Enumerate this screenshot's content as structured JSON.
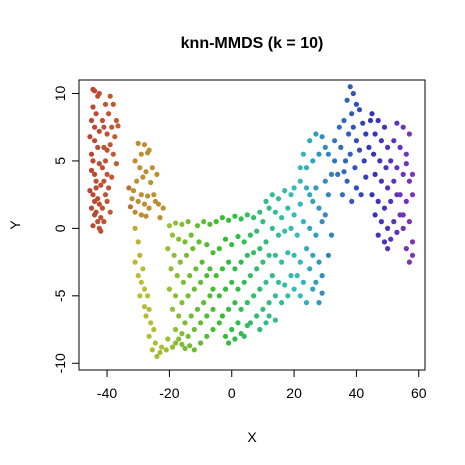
{
  "chart_data": {
    "type": "scatter",
    "title": "knn-MMDS (k = 10)",
    "xlabel": "X",
    "ylabel": "Y",
    "xlim": [
      -49,
      62
    ],
    "ylim": [
      -10.5,
      11
    ],
    "xticks": [
      -40,
      -20,
      0,
      20,
      40,
      60
    ],
    "yticks": [
      -10,
      -5,
      0,
      5,
      10
    ],
    "grid": false,
    "legend": "none",
    "point_color_scale": "rainbow hue by position along manifold (red to violet)",
    "points": [
      [
        -44,
        10.2
      ],
      [
        -43,
        9.8
      ],
      [
        -44.5,
        9
      ],
      [
        -43.5,
        8.5
      ],
      [
        -45,
        8
      ],
      [
        -44,
        7.5
      ],
      [
        -42.5,
        7.2
      ],
      [
        -45.5,
        6.8
      ],
      [
        -44,
        6.5
      ],
      [
        -43,
        6
      ],
      [
        -45,
        5.5
      ],
      [
        -44.5,
        5
      ],
      [
        -42.5,
        4.8
      ],
      [
        -45,
        4.3
      ],
      [
        -44,
        4
      ],
      [
        -43.5,
        3.5
      ],
      [
        -42,
        3.2
      ],
      [
        -45.5,
        2.8
      ],
      [
        -44.5,
        2.5
      ],
      [
        -43,
        2.2
      ],
      [
        -44,
        2
      ],
      [
        -42.5,
        1.8
      ],
      [
        -45,
        1.5
      ],
      [
        -43.5,
        1.2
      ],
      [
        -44,
        1
      ],
      [
        -42,
        0.8
      ],
      [
        -43,
        0.5
      ],
      [
        -44.5,
        0.2
      ],
      [
        -42.5,
        0
      ],
      [
        -43.5,
        3
      ],
      [
        -41.5,
        8
      ],
      [
        -41,
        7.5
      ],
      [
        -40,
        7
      ],
      [
        -41,
        6
      ],
      [
        -40.5,
        5
      ],
      [
        -41.5,
        4.5
      ],
      [
        -40,
        4
      ],
      [
        -41,
        3.5
      ],
      [
        -40.5,
        2.5
      ],
      [
        -41.5,
        1.5
      ],
      [
        -39,
        9.8
      ],
      [
        -38,
        9.2
      ],
      [
        -39.5,
        8.5
      ],
      [
        -37,
        8
      ],
      [
        -38.5,
        7.5
      ],
      [
        -36.5,
        7.6
      ],
      [
        -37.5,
        6.8
      ],
      [
        -39,
        6.2
      ],
      [
        -38,
        5.5
      ],
      [
        -40,
        5.8
      ],
      [
        -37,
        4.8
      ],
      [
        -38.5,
        3.8
      ],
      [
        -39.5,
        3
      ],
      [
        -40,
        2
      ],
      [
        -39,
        1.2
      ],
      [
        -41,
        0.5
      ],
      [
        -42,
        -0.2
      ],
      [
        -40.5,
        9.2
      ],
      [
        -42.5,
        10
      ],
      [
        -44.5,
        10.3
      ],
      [
        -30,
        6.3
      ],
      [
        -28,
        6.2
      ],
      [
        -29,
        5.5
      ],
      [
        -27,
        5.6
      ],
      [
        -31,
        5
      ],
      [
        -29.5,
        4.5
      ],
      [
        -27.5,
        4.2
      ],
      [
        -28.5,
        3.8
      ],
      [
        -30.5,
        3.5
      ],
      [
        -26,
        3.4
      ],
      [
        -33,
        3
      ],
      [
        -31.5,
        2.8
      ],
      [
        -29,
        2.5
      ],
      [
        -27,
        2.4
      ],
      [
        -25,
        2.5
      ],
      [
        -32,
        2.2
      ],
      [
        -30,
        2
      ],
      [
        -28,
        1.8
      ],
      [
        -26.5,
        1.5
      ],
      [
        -24.5,
        2
      ],
      [
        -23.5,
        1.8
      ],
      [
        -22,
        1.5
      ],
      [
        -23,
        0.8
      ],
      [
        -31,
        1.2
      ],
      [
        -29,
        1
      ],
      [
        -32.5,
        1.6
      ],
      [
        -27.5,
        0.9
      ],
      [
        -25.5,
        4.5
      ],
      [
        -24,
        4
      ],
      [
        -26.5,
        5.8
      ],
      [
        -31,
        0
      ],
      [
        -30,
        -1
      ],
      [
        -29.5,
        -2
      ],
      [
        -31,
        -2.5
      ],
      [
        -28.5,
        -3
      ],
      [
        -30,
        -3.5
      ],
      [
        -29,
        -4
      ],
      [
        -28,
        -4.5
      ],
      [
        -27,
        -5
      ],
      [
        -29.5,
        -5
      ],
      [
        -28,
        -5.8
      ],
      [
        -26.5,
        -6
      ],
      [
        -27.5,
        -6.5
      ],
      [
        -26,
        -7
      ],
      [
        -25,
        -7.5
      ],
      [
        -26.5,
        -8
      ],
      [
        -24.5,
        -8.5
      ],
      [
        -25.5,
        -9
      ],
      [
        -24,
        -9.5
      ],
      [
        -23,
        -9.2
      ],
      [
        -22.5,
        -8.8
      ],
      [
        -21,
        -9
      ],
      [
        -19,
        -8.8
      ],
      [
        -20.5,
        -8.2
      ],
      [
        -18,
        -8.5
      ],
      [
        -17,
        -8.2
      ],
      [
        -16,
        -8.6
      ],
      [
        -15,
        -8.9
      ],
      [
        -13.5,
        -8.7
      ],
      [
        -12,
        -9
      ],
      [
        -20,
        0.2
      ],
      [
        -18,
        0.4
      ],
      [
        -16,
        0.3
      ],
      [
        -14,
        0.5
      ],
      [
        -19,
        -0.5
      ],
      [
        -17,
        -0.8
      ],
      [
        -15,
        -1
      ],
      [
        -13,
        -0.5
      ],
      [
        -11,
        0.2
      ],
      [
        -20.5,
        -1.5
      ],
      [
        -18.5,
        -2
      ],
      [
        -16.5,
        -2.5
      ],
      [
        -14.5,
        -2
      ],
      [
        -12.5,
        -1.5
      ],
      [
        -10.5,
        -1
      ],
      [
        -19.5,
        -3
      ],
      [
        -17.5,
        -3.5
      ],
      [
        -15.5,
        -4
      ],
      [
        -13.5,
        -3.5
      ],
      [
        -11.5,
        -3
      ],
      [
        -9.5,
        -2.5
      ],
      [
        -20,
        -4.5
      ],
      [
        -18,
        -5
      ],
      [
        -16,
        -5.5
      ],
      [
        -14,
        -5
      ],
      [
        -12,
        -4.5
      ],
      [
        -10,
        -4
      ],
      [
        -8,
        -3.5
      ],
      [
        -19,
        -6
      ],
      [
        -17,
        -6.5
      ],
      [
        -15,
        -7
      ],
      [
        -13,
        -6.5
      ],
      [
        -11,
        -6
      ],
      [
        -9,
        -5.5
      ],
      [
        -7,
        -5
      ],
      [
        -18,
        -7.5
      ],
      [
        -16,
        -7.8
      ],
      [
        -14,
        -8
      ],
      [
        -12,
        -7.5
      ],
      [
        -10,
        -7
      ],
      [
        -8,
        -6.5
      ],
      [
        -6,
        -6
      ],
      [
        -10,
        -8.5
      ],
      [
        -8,
        -8
      ],
      [
        -6,
        -7.5
      ],
      [
        -4,
        -7
      ],
      [
        -9,
        0.5
      ],
      [
        -7,
        0.3
      ],
      [
        -5,
        0.5
      ],
      [
        -8,
        -1.2
      ],
      [
        -6,
        -1.8
      ],
      [
        -4,
        -1.5
      ],
      [
        -7,
        -3
      ],
      [
        -5,
        -3.5
      ],
      [
        -3,
        -3
      ],
      [
        -6,
        -4.5
      ],
      [
        -4,
        -5
      ],
      [
        -2,
        -4.5
      ],
      [
        -3,
        -6.5
      ],
      [
        -1,
        -6
      ],
      [
        -2,
        -8
      ],
      [
        0,
        -7.5
      ],
      [
        2,
        -7
      ],
      [
        -1,
        -8.5
      ],
      [
        1,
        -8.2
      ],
      [
        3,
        -7.8
      ],
      [
        5,
        -7.2
      ],
      [
        4,
        -8
      ],
      [
        -3,
        0.8
      ],
      [
        -1,
        0.6
      ],
      [
        1,
        0.9
      ],
      [
        3,
        0.7
      ],
      [
        5,
        1
      ],
      [
        7,
        0.8
      ],
      [
        9,
        1.2
      ],
      [
        -2,
        -0.8
      ],
      [
        0,
        -1.2
      ],
      [
        2,
        -0.6
      ],
      [
        4,
        -1
      ],
      [
        6,
        -0.5
      ],
      [
        8,
        -0.2
      ],
      [
        10,
        0.5
      ],
      [
        -1,
        -2.5
      ],
      [
        1,
        -3
      ],
      [
        3,
        -2.5
      ],
      [
        5,
        -2
      ],
      [
        7,
        -1.8
      ],
      [
        9,
        -1.5
      ],
      [
        11,
        -1
      ],
      [
        0,
        -4
      ],
      [
        2,
        -4.5
      ],
      [
        4,
        -4
      ],
      [
        6,
        -3.5
      ],
      [
        8,
        -3
      ],
      [
        10,
        -2.5
      ],
      [
        12,
        -2
      ],
      [
        1,
        -5.5
      ],
      [
        3,
        -6
      ],
      [
        5,
        -5.5
      ],
      [
        7,
        -5
      ],
      [
        9,
        -4.5
      ],
      [
        11,
        -4
      ],
      [
        13,
        -3.5
      ],
      [
        6,
        -7
      ],
      [
        8,
        -6.5
      ],
      [
        10,
        -6
      ],
      [
        12,
        -5.5
      ],
      [
        14,
        -5
      ],
      [
        9,
        -7.5
      ],
      [
        11,
        -7
      ],
      [
        12,
        1.5
      ],
      [
        14,
        1.2
      ],
      [
        16,
        0.8
      ],
      [
        13,
        0
      ],
      [
        15,
        -0.5
      ],
      [
        17,
        -0.2
      ],
      [
        14,
        -2
      ],
      [
        16,
        -2.5
      ],
      [
        18,
        -1.8
      ],
      [
        15,
        -4
      ],
      [
        17,
        -4.2
      ],
      [
        19,
        -3.5
      ],
      [
        16,
        -5.5
      ],
      [
        18,
        -5
      ],
      [
        20,
        -4.5
      ],
      [
        11,
        2
      ],
      [
        13,
        2.5
      ],
      [
        15,
        2.2
      ],
      [
        12,
        -6.5
      ],
      [
        14,
        -6.8
      ],
      [
        18,
        1.5
      ],
      [
        20,
        1
      ],
      [
        22,
        1.8
      ],
      [
        19,
        0
      ],
      [
        21,
        -0.5
      ],
      [
        23,
        0.5
      ],
      [
        20,
        -2
      ],
      [
        22,
        -2.5
      ],
      [
        24,
        -1.5
      ],
      [
        21,
        -3.5
      ],
      [
        23,
        -4
      ],
      [
        25,
        -3
      ],
      [
        22,
        -5
      ],
      [
        24,
        -5.5
      ],
      [
        26,
        -4.5
      ],
      [
        20,
        3
      ],
      [
        22,
        3.5
      ],
      [
        24,
        3
      ],
      [
        19,
        2.5
      ],
      [
        17,
        2.8
      ],
      [
        26,
        2
      ],
      [
        28,
        1.5
      ],
      [
        25,
        0
      ],
      [
        27,
        -0.5
      ],
      [
        29,
        0.5
      ],
      [
        26,
        -2
      ],
      [
        28,
        -2.5
      ],
      [
        27,
        -4
      ],
      [
        29,
        -3.5
      ],
      [
        28,
        -5.5
      ],
      [
        24,
        4.5
      ],
      [
        26,
        5
      ],
      [
        28,
        5.5
      ],
      [
        30,
        6
      ],
      [
        25,
        6.5
      ],
      [
        27,
        7
      ],
      [
        29,
        6.8
      ],
      [
        31,
        5.5
      ],
      [
        23,
        5.5
      ],
      [
        22,
        4.5
      ],
      [
        30,
        3.5
      ],
      [
        32,
        4
      ],
      [
        31,
        2.5
      ],
      [
        30,
        1
      ],
      [
        32,
        -0.5
      ],
      [
        31,
        -2
      ],
      [
        29,
        -4.8
      ],
      [
        33,
        5
      ],
      [
        27,
        3
      ],
      [
        25,
        2.5
      ],
      [
        38,
        10.5
      ],
      [
        39,
        10
      ],
      [
        37,
        9.5
      ],
      [
        40,
        9.2
      ],
      [
        38.5,
        8.5
      ],
      [
        41,
        8.8
      ],
      [
        36,
        8
      ],
      [
        39,
        7.5
      ],
      [
        42,
        7.8
      ],
      [
        37.5,
        7
      ],
      [
        40,
        6.5
      ],
      [
        43,
        7
      ],
      [
        35,
        6
      ],
      [
        38,
        5.5
      ],
      [
        41,
        5.8
      ],
      [
        36.5,
        5
      ],
      [
        39.5,
        4.5
      ],
      [
        42.5,
        5
      ],
      [
        34,
        4
      ],
      [
        37,
        3.5
      ],
      [
        40,
        3
      ],
      [
        43,
        3.8
      ],
      [
        35.5,
        2.5
      ],
      [
        38.5,
        2
      ],
      [
        41.5,
        2.5
      ],
      [
        44,
        6
      ],
      [
        44.5,
        8
      ],
      [
        36,
        4.2
      ],
      [
        34.5,
        7.5
      ],
      [
        33,
        6.5
      ],
      [
        45,
        8.5
      ],
      [
        47,
        8
      ],
      [
        49,
        7.5
      ],
      [
        46,
        7
      ],
      [
        48,
        6.5
      ],
      [
        50,
        6
      ],
      [
        45.5,
        5.5
      ],
      [
        47.5,
        5
      ],
      [
        49.5,
        4.5
      ],
      [
        51,
        5
      ],
      [
        46,
        4
      ],
      [
        48,
        3.5
      ],
      [
        50,
        3
      ],
      [
        52,
        3.5
      ],
      [
        45,
        2.5
      ],
      [
        47,
        2
      ],
      [
        49,
        1.5
      ],
      [
        51,
        2
      ],
      [
        53,
        2.5
      ],
      [
        46,
        1
      ],
      [
        48,
        0.5
      ],
      [
        50,
        0
      ],
      [
        52,
        0.5
      ],
      [
        54,
        1
      ],
      [
        47,
        -0.5
      ],
      [
        49,
        -1
      ],
      [
        51,
        -0.8
      ],
      [
        53,
        -0.3
      ],
      [
        55,
        0
      ],
      [
        50,
        -1.5
      ],
      [
        52,
        6.5
      ],
      [
        54,
        6
      ],
      [
        56,
        5.5
      ],
      [
        53,
        4.5
      ],
      [
        55,
        4
      ],
      [
        57,
        3.5
      ],
      [
        54,
        2.5
      ],
      [
        56,
        2
      ],
      [
        58,
        2.5
      ],
      [
        55,
        1
      ],
      [
        57,
        0.5
      ],
      [
        58,
        -1
      ],
      [
        56,
        -1.5
      ],
      [
        57,
        -2.5
      ],
      [
        58,
        -2
      ],
      [
        53,
        7.8
      ],
      [
        55,
        7.5
      ],
      [
        57,
        7
      ],
      [
        56,
        4.8
      ],
      [
        58,
        4
      ]
    ]
  }
}
